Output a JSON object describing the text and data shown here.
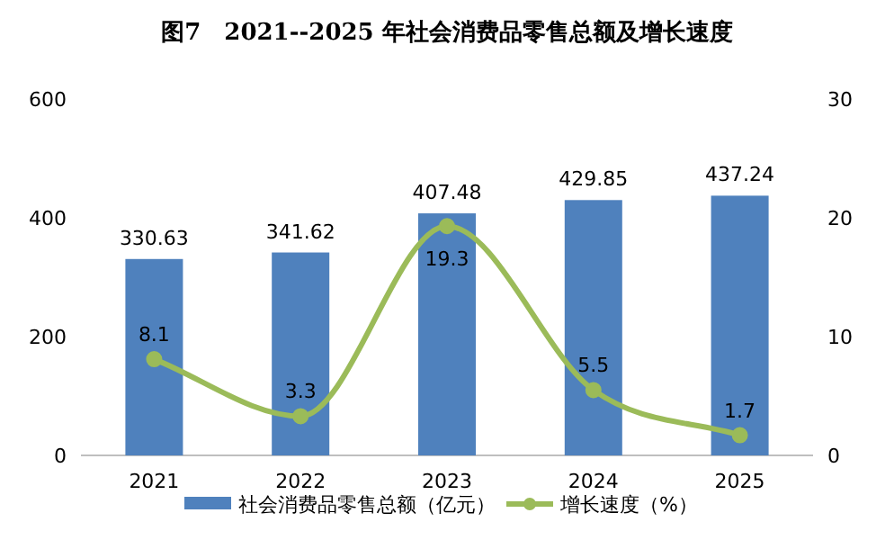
{
  "chart_data": {
    "type": "bar",
    "title": "图7　2021--2025 年社会消费品零售总额及增长速度",
    "categories": [
      "2021",
      "2022",
      "2023",
      "2024",
      "2025"
    ],
    "series": [
      {
        "name": "社会消费品零售总额（亿元）",
        "color": "#4f81bd",
        "values": [
          330.63,
          341.62,
          407.48,
          429.85,
          437.24
        ]
      },
      {
        "name": "增长速度（%）",
        "type": "line",
        "axis": "y2",
        "color": "#9bbb59",
        "values": [
          8.1,
          3.3,
          19.3,
          5.5,
          1.7
        ]
      }
    ],
    "ylim": [
      0,
      600
    ],
    "yticks": [
      0,
      200,
      400,
      600
    ],
    "y2lim": [
      0,
      30
    ],
    "y2ticks": [
      0,
      10,
      20,
      30
    ],
    "data_labels": true,
    "legend": "bottom",
    "marker": "circle",
    "grid": false
  }
}
